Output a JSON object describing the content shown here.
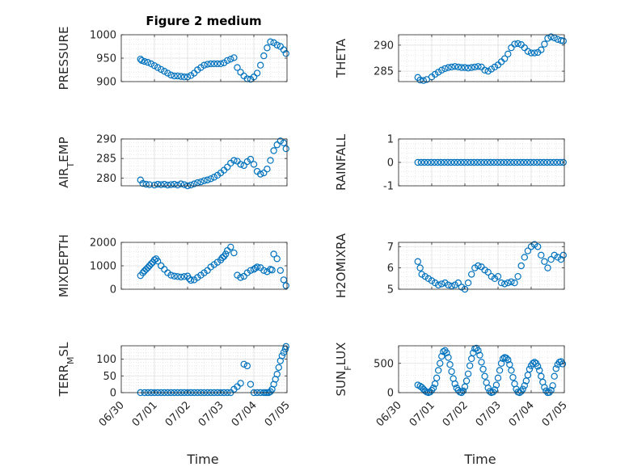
{
  "figure_title": "Figure 2 medium",
  "chart_data": [
    {
      "type": "scatter",
      "ylabel": "PRESSURE",
      "ylim": [
        900,
        1000
      ],
      "yticks": [
        900,
        950,
        1000
      ],
      "xlim": [
        0,
        5
      ],
      "x": [
        0.58,
        0.62,
        0.7,
        0.8,
        0.9,
        1.0,
        1.1,
        1.2,
        1.3,
        1.4,
        1.5,
        1.6,
        1.7,
        1.8,
        1.9,
        2.0,
        2.1,
        2.2,
        2.3,
        2.4,
        2.5,
        2.6,
        2.7,
        2.8,
        2.9,
        3.0,
        3.1,
        3.2,
        3.3,
        3.4,
        3.5,
        3.6,
        3.7,
        3.8,
        3.9,
        4.0,
        4.1,
        4.2,
        4.3,
        4.4,
        4.5,
        4.6,
        4.7,
        4.8,
        4.9,
        4.97
      ],
      "y": [
        948,
        945,
        943,
        941,
        938,
        934,
        930,
        926,
        922,
        918,
        914,
        912,
        912,
        911,
        910,
        910,
        913,
        918,
        925,
        930,
        935,
        937,
        938,
        938,
        938,
        938,
        940,
        945,
        948,
        951,
        930,
        920,
        912,
        906,
        905,
        910,
        918,
        935,
        955,
        972,
        985,
        983,
        978,
        975,
        968,
        960
      ]
    },
    {
      "type": "scatter",
      "ylabel": "THETA",
      "ylim": [
        283,
        292
      ],
      "yticks": [
        285,
        290
      ],
      "xlim": [
        0,
        5
      ],
      "x": [
        0.58,
        0.65,
        0.75,
        0.85,
        1.0,
        1.1,
        1.2,
        1.3,
        1.4,
        1.5,
        1.6,
        1.7,
        1.8,
        1.9,
        2.0,
        2.1,
        2.2,
        2.3,
        2.4,
        2.5,
        2.6,
        2.7,
        2.8,
        2.9,
        3.0,
        3.1,
        3.2,
        3.3,
        3.4,
        3.5,
        3.6,
        3.7,
        3.8,
        3.9,
        4.0,
        4.1,
        4.2,
        4.3,
        4.4,
        4.5,
        4.6,
        4.7,
        4.8,
        4.9,
        4.97
      ],
      "y": [
        283.8,
        283.3,
        283.2,
        283.4,
        283.9,
        284.4,
        284.8,
        285.2,
        285.5,
        285.7,
        285.8,
        285.9,
        285.8,
        285.7,
        285.7,
        285.6,
        285.7,
        285.8,
        285.9,
        285.8,
        285.2,
        285.0,
        285.4,
        285.8,
        286.2,
        286.8,
        287.4,
        288.3,
        289.5,
        290.2,
        290.3,
        290.1,
        289.5,
        288.8,
        288.5,
        288.5,
        288.6,
        289.1,
        290.2,
        291.3,
        291.6,
        291.4,
        291.1,
        290.9,
        290.8
      ]
    },
    {
      "type": "scatter",
      "ylabel": "AIR_TEMP",
      "ylim": [
        278,
        290
      ],
      "yticks": [
        280,
        285,
        290
      ],
      "xlim": [
        0,
        5
      ],
      "x": [
        0.58,
        0.65,
        0.75,
        0.85,
        1.0,
        1.1,
        1.2,
        1.3,
        1.4,
        1.5,
        1.6,
        1.7,
        1.8,
        1.9,
        2.0,
        2.1,
        2.2,
        2.3,
        2.4,
        2.5,
        2.6,
        2.7,
        2.8,
        2.9,
        3.0,
        3.1,
        3.2,
        3.3,
        3.4,
        3.5,
        3.6,
        3.7,
        3.8,
        3.9,
        4.0,
        4.1,
        4.2,
        4.3,
        4.4,
        4.5,
        4.6,
        4.7,
        4.8,
        4.9,
        4.97
      ],
      "y": [
        279.5,
        278.6,
        278.4,
        278.3,
        278.2,
        278.4,
        278.3,
        278.4,
        278.2,
        278.3,
        278.4,
        278.2,
        278.5,
        278.3,
        278.0,
        278.2,
        278.5,
        278.8,
        279.0,
        279.3,
        279.5,
        279.8,
        280.2,
        280.7,
        281.3,
        282.0,
        282.8,
        283.8,
        284.5,
        284.3,
        283.5,
        283.2,
        284.2,
        284.8,
        283.5,
        281.7,
        281.0,
        281.3,
        282.3,
        284.5,
        287.0,
        288.5,
        289.5,
        289.0,
        287.5
      ]
    },
    {
      "type": "scatter",
      "ylabel": "RAINFALL",
      "ylim": [
        -1,
        1
      ],
      "yticks": [
        -1,
        0,
        1
      ],
      "xlim": [
        0,
        5
      ],
      "x": [
        0.58,
        0.68,
        0.78,
        0.88,
        0.98,
        1.08,
        1.18,
        1.28,
        1.38,
        1.48,
        1.58,
        1.68,
        1.78,
        1.88,
        1.98,
        2.08,
        2.18,
        2.28,
        2.38,
        2.48,
        2.58,
        2.68,
        2.78,
        2.88,
        2.98,
        3.08,
        3.18,
        3.28,
        3.38,
        3.48,
        3.58,
        3.68,
        3.78,
        3.88,
        3.98,
        4.08,
        4.18,
        4.28,
        4.38,
        4.48,
        4.58,
        4.68,
        4.78,
        4.88,
        4.97
      ],
      "y": [
        0,
        0,
        0,
        0,
        0,
        0,
        0,
        0,
        0,
        0,
        0,
        0,
        0,
        0,
        0,
        0,
        0,
        0,
        0,
        0,
        0,
        0,
        0,
        0,
        0,
        0,
        0,
        0,
        0,
        0,
        0,
        0,
        0,
        0,
        0,
        0,
        0,
        0,
        0,
        0,
        0,
        0,
        0,
        0,
        0
      ]
    },
    {
      "type": "scatter",
      "ylabel": "MIXDEPTH",
      "ylim": [
        0,
        2000
      ],
      "yticks": [
        0,
        1000,
        2000
      ],
      "xlim": [
        0,
        5
      ],
      "x": [
        0.58,
        0.65,
        0.7,
        0.75,
        0.8,
        0.85,
        0.9,
        0.95,
        1.0,
        1.05,
        1.1,
        1.2,
        1.3,
        1.4,
        1.5,
        1.6,
        1.7,
        1.8,
        1.9,
        2.0,
        2.05,
        2.1,
        2.2,
        2.3,
        2.4,
        2.5,
        2.6,
        2.7,
        2.8,
        2.9,
        3.0,
        3.05,
        3.1,
        3.15,
        3.2,
        3.3,
        3.4,
        3.5,
        3.6,
        3.7,
        3.8,
        3.9,
        4.0,
        4.05,
        4.1,
        4.2,
        4.3,
        4.4,
        4.5,
        4.55,
        4.6,
        4.7,
        4.8,
        4.9,
        4.97
      ],
      "y": [
        580,
        700,
        780,
        850,
        920,
        1000,
        1080,
        1150,
        1250,
        1300,
        1200,
        1000,
        850,
        700,
        600,
        560,
        540,
        520,
        540,
        560,
        450,
        380,
        400,
        500,
        600,
        700,
        800,
        950,
        1050,
        1150,
        1250,
        1350,
        1400,
        1500,
        1650,
        1800,
        1550,
        600,
        500,
        550,
        700,
        800,
        850,
        900,
        950,
        920,
        800,
        750,
        850,
        820,
        1500,
        1300,
        800,
        400,
        150
      ]
    },
    {
      "type": "scatter",
      "ylabel": "H2OMIXRA",
      "ylim": [
        5,
        7.2
      ],
      "yticks": [
        5,
        6,
        7
      ],
      "xlim": [
        0,
        5
      ],
      "x": [
        0.58,
        0.65,
        0.7,
        0.8,
        0.9,
        1.0,
        1.1,
        1.2,
        1.3,
        1.4,
        1.5,
        1.6,
        1.7,
        1.8,
        1.9,
        2.0,
        2.1,
        2.2,
        2.3,
        2.4,
        2.5,
        2.6,
        2.7,
        2.8,
        2.9,
        3.0,
        3.1,
        3.2,
        3.3,
        3.4,
        3.5,
        3.6,
        3.7,
        3.8,
        3.9,
        4.0,
        4.1,
        4.2,
        4.3,
        4.4,
        4.5,
        4.6,
        4.7,
        4.8,
        4.9,
        4.97
      ],
      "y": [
        6.3,
        6.0,
        5.7,
        5.6,
        5.5,
        5.4,
        5.3,
        5.2,
        5.25,
        5.3,
        5.2,
        5.15,
        5.2,
        5.3,
        5.1,
        5.0,
        5.3,
        5.7,
        6.0,
        6.1,
        6.05,
        5.9,
        5.8,
        5.6,
        5.5,
        5.6,
        5.3,
        5.25,
        5.3,
        5.35,
        5.3,
        5.6,
        6.1,
        6.5,
        6.8,
        7.0,
        7.1,
        7.0,
        6.6,
        6.3,
        6.0,
        6.4,
        6.6,
        6.5,
        6.4,
        6.6
      ]
    },
    {
      "type": "scatter",
      "ylabel": "TERR_MSL",
      "ylim": [
        0,
        140
      ],
      "yticks": [
        0,
        50,
        100
      ],
      "xlim": [
        0,
        5
      ],
      "x": [
        0.58,
        0.7,
        0.8,
        0.9,
        1.0,
        1.1,
        1.2,
        1.3,
        1.4,
        1.5,
        1.6,
        1.7,
        1.8,
        1.9,
        2.0,
        2.1,
        2.2,
        2.3,
        2.4,
        2.5,
        2.6,
        2.7,
        2.8,
        2.9,
        3.0,
        3.1,
        3.2,
        3.3,
        3.4,
        3.5,
        3.6,
        3.7,
        3.8,
        3.9,
        4.0,
        4.1,
        4.2,
        4.3,
        4.35,
        4.4,
        4.45,
        4.5,
        4.55,
        4.6,
        4.65,
        4.7,
        4.75,
        4.8,
        4.85,
        4.9,
        4.95,
        4.97
      ],
      "y": [
        0,
        0,
        0,
        0,
        0,
        0,
        0,
        0,
        0,
        0,
        0,
        0,
        0,
        0,
        0,
        0,
        0,
        0,
        0,
        0,
        0,
        0,
        0,
        0,
        0,
        0,
        0,
        0,
        10,
        18,
        28,
        85,
        80,
        25,
        0,
        0,
        0,
        0,
        0,
        0,
        0,
        3,
        10,
        25,
        40,
        55,
        75,
        95,
        110,
        120,
        130,
        138
      ]
    },
    {
      "type": "scatter",
      "ylabel": "SUN_FLUX",
      "ylim": [
        0,
        800
      ],
      "yticks": [
        0,
        500
      ],
      "xlim": [
        0,
        5
      ],
      "x": [
        0.58,
        0.65,
        0.7,
        0.75,
        0.8,
        0.85,
        0.9,
        0.95,
        1.0,
        1.05,
        1.1,
        1.15,
        1.2,
        1.25,
        1.3,
        1.35,
        1.4,
        1.45,
        1.5,
        1.55,
        1.6,
        1.65,
        1.7,
        1.75,
        1.8,
        1.85,
        1.9,
        1.95,
        2.0,
        2.05,
        2.1,
        2.15,
        2.2,
        2.25,
        2.3,
        2.35,
        2.4,
        2.45,
        2.5,
        2.55,
        2.6,
        2.65,
        2.7,
        2.75,
        2.8,
        2.85,
        2.9,
        2.95,
        3.0,
        3.05,
        3.1,
        3.15,
        3.2,
        3.25,
        3.3,
        3.35,
        3.4,
        3.45,
        3.5,
        3.55,
        3.6,
        3.65,
        3.7,
        3.75,
        3.8,
        3.85,
        3.9,
        3.95,
        4.0,
        4.05,
        4.1,
        4.15,
        4.2,
        4.25,
        4.3,
        4.35,
        4.4,
        4.45,
        4.5,
        4.55,
        4.6,
        4.65,
        4.7,
        4.75,
        4.8,
        4.85,
        4.9,
        4.95
      ],
      "y": [
        130,
        110,
        90,
        60,
        30,
        10,
        0,
        10,
        40,
        80,
        150,
        250,
        380,
        500,
        620,
        700,
        720,
        680,
        600,
        480,
        360,
        240,
        150,
        80,
        40,
        10,
        0,
        30,
        100,
        200,
        320,
        460,
        580,
        680,
        750,
        760,
        720,
        640,
        520,
        400,
        280,
        170,
        80,
        20,
        0,
        10,
        50,
        130,
        250,
        380,
        500,
        580,
        600,
        590,
        560,
        480,
        380,
        260,
        150,
        60,
        10,
        0,
        20,
        60,
        120,
        200,
        300,
        400,
        460,
        500,
        520,
        500,
        450,
        380,
        280,
        180,
        90,
        30,
        0,
        5,
        40,
        120,
        280,
        410,
        480,
        520,
        530,
        490
      ]
    }
  ],
  "x_tick_labels": [
    "06/30",
    "07/01",
    "07/02",
    "07/03",
    "07/04",
    "07/05"
  ],
  "x_axis_label": "Time"
}
